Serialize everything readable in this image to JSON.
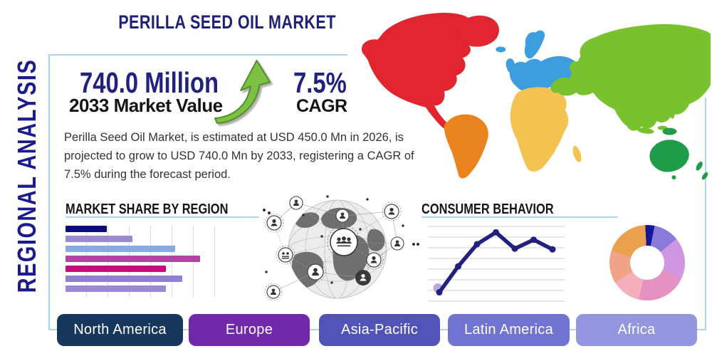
{
  "side_label": "REGIONAL ANALYSIS",
  "header": {
    "title": "PERILLA SEED OIL MARKET"
  },
  "stats": {
    "market_value": "740.0 Million",
    "market_value_label": "2033 Market Value",
    "cagr_value": "7.5%",
    "cagr_label": "CAGR"
  },
  "description": "Perilla Seed Oil Market, is estimated at USD 450.0 Mn in 2026, is projected to grow to USD 740.0 Mn by 2033, registering a CAGR of 7.5% during the forecast period.",
  "sections": {
    "market_share_title": "MARKET SHARE BY REGION",
    "consumer_behavior_title": "CONSUMER BEHAVIOR"
  },
  "region_buttons": [
    {
      "label": "North America",
      "color": "#17375f"
    },
    {
      "label": "Europe",
      "color": "#7129a9"
    },
    {
      "label": "Asia-Pacific",
      "color": "#5154b6"
    },
    {
      "label": "Latin America",
      "color": "#7173d0"
    },
    {
      "label": "Africa",
      "color": "#9395de"
    }
  ],
  "palette": {
    "frame_line": "#aad6ea",
    "navy_text": "#22227e",
    "arrow_green": "#7cc142",
    "arrow_green_edge": "#4f8f28"
  },
  "icons": {
    "growth_arrow": "up-right-growth-arrow-icon",
    "globe": "globe-network-icon",
    "world_map": "world-map-icon"
  },
  "map": {
    "colors": {
      "north_america": "#e0252e",
      "greenland": "#e0252e",
      "south_america": "#e8831d",
      "europe": "#3d9edd",
      "africa": "#f3c251",
      "asia": "#77c22e",
      "australia": "#1f9c49"
    }
  },
  "chart_data": [
    {
      "type": "bar",
      "orientation": "horizontal",
      "title": "MARKET SHARE BY REGION",
      "categories": [
        "bar-1",
        "bar-2",
        "bar-3",
        "bar-4",
        "bar-5",
        "bar-6",
        "bar-7"
      ],
      "values": [
        28,
        45,
        74,
        91,
        68,
        79,
        68
      ],
      "colors": [
        "#0d0d7a",
        "#9c88cf",
        "#89a9e2",
        "#b340a3",
        "#c70c79",
        "#9180d2",
        "#9b87d2"
      ],
      "xlim": [
        0,
        100
      ],
      "grid": "vertical",
      "legend": false,
      "note": "no numeric axis labels shown; values estimated as % of plot width"
    },
    {
      "type": "line",
      "title": "CONSUMER BEHAVIOR",
      "x": [
        1,
        2,
        3,
        4,
        5,
        6,
        7
      ],
      "values": [
        11,
        46,
        76,
        92,
        70,
        82,
        69
      ],
      "color": "#23217d",
      "first_point_halo_color": "#b7a6e2",
      "marker": "circle",
      "grid": "horizontal",
      "ylim": [
        0,
        100
      ],
      "note": "no axis labels shown; values estimated 0-100 from gridlines"
    },
    {
      "type": "donut",
      "title": "",
      "start_deg": -3,
      "hole_ratio": 0.44,
      "segments": [
        {
          "color": "#16169a",
          "pct": 4
        },
        {
          "color": "#8a7ad9",
          "pct": 11
        },
        {
          "color": "#cf97e3",
          "pct": 17.5
        },
        {
          "color": "#e591c4",
          "pct": 22
        },
        {
          "color": "#f5aebb",
          "pct": 12.5
        },
        {
          "color": "#f2a287",
          "pct": 14
        },
        {
          "color": "#eba04e",
          "pct": 19
        }
      ],
      "note": "no segment labels shown; percentages estimated from arc angles"
    }
  ]
}
